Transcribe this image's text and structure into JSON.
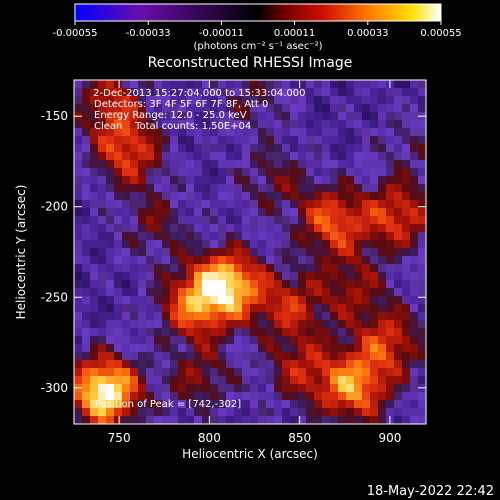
{
  "colorbar": {
    "ticks": [
      "-0.00055",
      "-0.00033",
      "-0.00011",
      "0.00011",
      "0.00033",
      "0.00055"
    ],
    "tick_values": [
      -0.00055,
      -0.00033,
      -0.00011,
      0.00011,
      0.00033,
      0.00055
    ],
    "units": "(photons cm⁻² s⁻¹ asec⁻²)",
    "range": [
      -0.00055,
      0.00055
    ],
    "colors": [
      "#0000ff",
      "#6a0dad",
      "#000000",
      "#7a0000",
      "#d01000",
      "#ff7a00",
      "#ffe000",
      "#ffffff"
    ]
  },
  "chart_data": {
    "type": "heatmap",
    "title": "Reconstructed RHESSI Image",
    "xlabel": "Heliocentric X (arcsec)",
    "ylabel": "Heliocentric Y (arcsec)",
    "xlim": [
      725,
      920
    ],
    "ylim": [
      -320,
      -130
    ],
    "xticks": [
      750,
      800,
      850,
      900
    ],
    "yticks": [
      -150,
      -200,
      -250,
      -300
    ],
    "annotations": [
      " 2-Dec-2013 15:27:04.000 to 15:33:04.000",
      "Detectors: 3F 4F 5F 6F 7F 8F, Att 0",
      "Energy Range: 12.0 - 25.0 keV",
      "Clean    Total counts: 1.50E+04"
    ],
    "peak_label": "Position of Peak = [742,-302]",
    "peak": [
      742,
      -302
    ],
    "hotspots": [
      {
        "x": 742,
        "y": -302,
        "v": 1.0
      },
      {
        "x": 810,
        "y": -243,
        "v": 0.85
      },
      {
        "x": 790,
        "y": -255,
        "v": 0.55
      },
      {
        "x": 868,
        "y": -208,
        "v": 0.6
      },
      {
        "x": 905,
        "y": -205,
        "v": 0.55
      },
      {
        "x": 755,
        "y": -170,
        "v": 0.55
      },
      {
        "x": 745,
        "y": -142,
        "v": 0.45
      },
      {
        "x": 880,
        "y": -300,
        "v": 0.7
      },
      {
        "x": 900,
        "y": -275,
        "v": 0.5
      },
      {
        "x": 845,
        "y": -255,
        "v": 0.45
      },
      {
        "x": 850,
        "y": -290,
        "v": 0.4
      },
      {
        "x": 795,
        "y": -295,
        "v": 0.35
      },
      {
        "x": 880,
        "y": -245,
        "v": 0.35
      },
      {
        "x": 770,
        "y": -210,
        "v": 0.3
      },
      {
        "x": 835,
        "y": -185,
        "v": 0.3
      },
      {
        "x": 825,
        "y": -140,
        "v": 0.25
      },
      {
        "x": 910,
        "y": -165,
        "v": 0.2
      }
    ]
  },
  "footer": {
    "date": "18-May-2022 22:42"
  }
}
